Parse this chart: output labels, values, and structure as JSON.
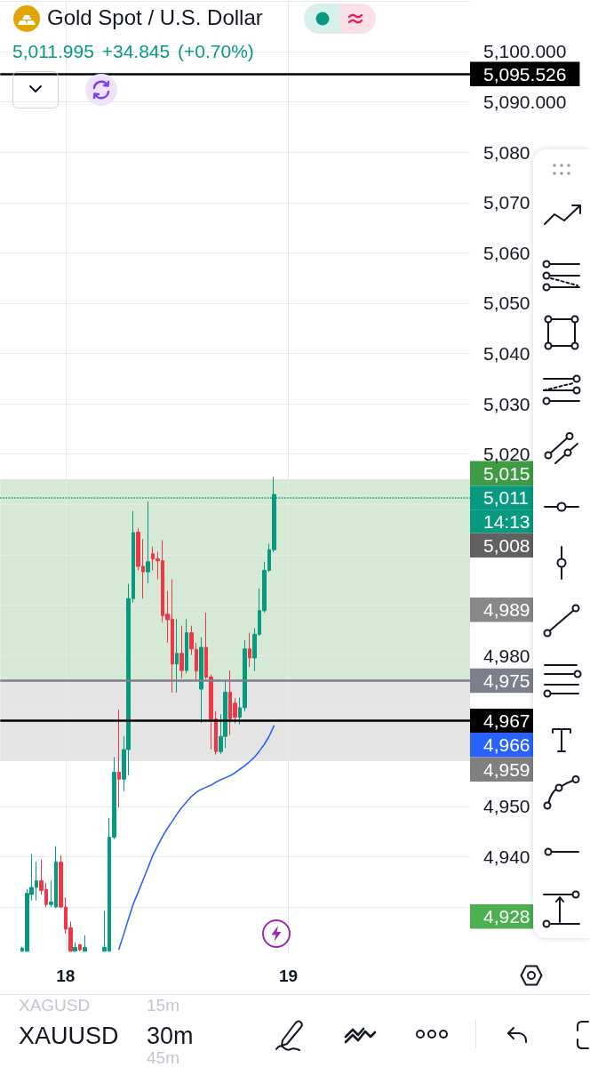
{
  "chart_data": {
    "type": "candlestick",
    "title": "Gold Spot / U.S. Dollar",
    "subtitle": "5,011.995 +34.845 (+0.70%)",
    "categories": [
      null,
      null,
      null,
      null,
      null,
      null,
      null,
      null,
      null,
      null,
      null,
      null,
      null,
      "18",
      null,
      null,
      null,
      null,
      null,
      null,
      null,
      null,
      null,
      null,
      null,
      null,
      null,
      null,
      null,
      null,
      null,
      null,
      null,
      null,
      null,
      null,
      null,
      null,
      null,
      null,
      null,
      null,
      null,
      null,
      null,
      null,
      null,
      null,
      null,
      null,
      null,
      null,
      null,
      null,
      null,
      null,
      null,
      null,
      null,
      "19",
      null,
      null,
      null,
      null,
      null,
      null,
      null,
      null,
      null,
      null,
      null,
      null,
      null,
      null,
      null,
      null,
      null,
      null,
      null,
      null,
      null,
      null,
      null,
      null,
      null,
      null,
      null,
      null,
      null,
      null,
      null,
      null,
      null,
      null,
      null,
      null,
      null
    ],
    "ohlc": [
      null,
      null,
      null,
      null,
      [
        4921.2,
        4922.1,
        4921.2,
        4921.8
      ],
      [
        4921.2,
        4933.6,
        4921.2,
        4932.7
      ],
      [
        4932.5,
        4940.5,
        4931.3,
        4933.9
      ],
      [
        4933.9,
        4939.0,
        4931.3,
        4935.2
      ],
      [
        4935.2,
        4939.4,
        4932.4,
        4933.3
      ],
      [
        4933.5,
        4934.8,
        4930.0,
        4930.5
      ],
      [
        4930.5,
        4935.3,
        4930.0,
        4931.0
      ],
      [
        4930.0,
        4942.1,
        4929.8,
        4939.0
      ],
      [
        4938.9,
        4940.3,
        4929.8,
        4930.0
      ],
      [
        4930.0,
        4931.9,
        4924.7,
        4925.6
      ],
      [
        4925.9,
        4927.1,
        4921.2,
        4921.2
      ],
      [
        4921.2,
        4923.0,
        4921.2,
        4922.0
      ],
      [
        4922.5,
        4922.7,
        4921.2,
        4921.5
      ],
      [
        4921.2,
        4924.4,
        4921.2,
        4922.0
      ],
      null,
      null,
      null,
      [
        4921.2,
        4929.2,
        4921.2,
        4922.0
      ],
      [
        4921.2,
        4947.7,
        4921.2,
        4943.9
      ],
      [
        4943.9,
        4959.8,
        4943.5,
        4956.8
      ],
      [
        4956.8,
        4969.2,
        4949.8,
        4955.4
      ],
      [
        4955.4,
        4963.9,
        4953.0,
        4961.3
      ],
      [
        4961.3,
        4994.2,
        4956.2,
        4991.3
      ],
      [
        4991.3,
        5008.7,
        4990.5,
        5004.4
      ],
      [
        5004.5,
        5005.3,
        4996.9,
        4997.7
      ],
      [
        4997.7,
        5003.1,
        4991.3,
        4996.6
      ],
      [
        4996.6,
        5010.6,
        4994.3,
        4998.6
      ],
      [
        5000.2,
        5001.6,
        4996.9,
        4999.2
      ],
      [
        4999.2,
        5000.6,
        4995.1,
        4998.8
      ],
      [
        4998.8,
        5002.9,
        4986.6,
        4987.9
      ],
      [
        4988.2,
        4992.8,
        4982.5,
        4987.1
      ],
      [
        4987.2,
        4995.1,
        4972.6,
        4978.3
      ],
      [
        4978.3,
        4987.2,
        4972.6,
        4980.4
      ],
      [
        4980.4,
        4985.9,
        4975.4,
        4977.0
      ],
      [
        4977.0,
        4987.2,
        4976.4,
        4984.5
      ],
      [
        4984.5,
        4985.9,
        4980.1,
        4981.3
      ],
      [
        4981.2,
        4982.5,
        4975.1,
        4976.9
      ],
      [
        4973.3,
        4983.6,
        4966.6,
        4981.6
      ],
      [
        4981.6,
        4988.5,
        4975.3,
        4975.7
      ],
      [
        4975.7,
        4976.2,
        4961.3,
        4967.4
      ],
      [
        4967.4,
        4968.9,
        4960.3,
        4960.9
      ],
      [
        4960.9,
        4968.3,
        4960.4,
        4963.9
      ],
      [
        4963.9,
        4975.1,
        4961.6,
        4972.7
      ],
      [
        4972.7,
        4977.0,
        4964.2,
        4967.4
      ],
      [
        4970.5,
        4971.5,
        4966.5,
        4967.7
      ],
      [
        4967.7,
        4971.6,
        4966.3,
        4969.6
      ],
      [
        4969.6,
        4983.0,
        4968.9,
        4981.3
      ],
      [
        4981.3,
        4984.5,
        4977.7,
        4979.5
      ],
      [
        4979.5,
        4985.4,
        4976.9,
        4984.2
      ],
      [
        4984.2,
        4993.3,
        4983.9,
        4988.9
      ],
      [
        4988.9,
        4998.6,
        4988.5,
        4996.9
      ],
      [
        4996.9,
        5002.2,
        4996.6,
        5001.0
      ],
      [
        5001.0,
        5015.5,
        5000.5,
        5011.995
      ],
      null,
      null,
      null,
      null,
      null,
      null,
      null,
      null,
      null,
      null,
      null,
      null,
      null,
      null,
      null,
      null,
      null,
      null,
      null,
      null,
      null,
      null,
      null,
      null,
      null,
      null,
      null,
      null,
      null,
      null,
      null,
      null,
      null,
      null,
      null,
      null,
      null,
      null,
      null,
      null
    ],
    "colors": [
      null,
      null,
      null,
      null,
      "#089981",
      "#089981",
      "#089981",
      "#089981",
      "#f23645",
      "#f23645",
      "#089981",
      "#089981",
      "#f23645",
      "#f23645",
      "#f23645",
      "#089981",
      "#f23645",
      "#089981",
      null,
      null,
      null,
      "#089981",
      "#089981",
      "#089981",
      "#f23645",
      "#089981",
      "#089981",
      "#089981",
      "#f23645",
      "#f23645",
      "#089981",
      "#f23645",
      "#f23645",
      "#f23645",
      "#f23645",
      "#f23645",
      "#089981",
      "#f23645",
      "#089981",
      "#f23645",
      "#f23645",
      "#089981",
      "#f23645",
      "#f23645",
      "#f23645",
      "#089981",
      "#089981",
      "#f23645",
      "#f23645",
      "#089981",
      "#089981",
      "#f23645",
      "#089981",
      "#089981",
      "#089981",
      "#089981",
      "#089981",
      null,
      null,
      null,
      null,
      null,
      null,
      null,
      null,
      null,
      null,
      null,
      null,
      null,
      null,
      null,
      null,
      null,
      null,
      null,
      null,
      null,
      null,
      null,
      null,
      null,
      null,
      null,
      null,
      null,
      null,
      null,
      null,
      null,
      null,
      null,
      null,
      null,
      null,
      null,
      null
    ],
    "series": [
      {
        "type": "line",
        "color": "#2962ff",
        "values": [
          null,
          null,
          null,
          null,
          null,
          null,
          null,
          null,
          null,
          null,
          null,
          null,
          null,
          null,
          null,
          null,
          null,
          null,
          null,
          null,
          null,
          null,
          null,
          null,
          4921.6,
          4924.6,
          4927.7,
          4930.7,
          4933.0,
          4935.4,
          4937.8,
          4940.3,
          4942.2,
          4944.0,
          4945.6,
          4947.0,
          4948.5,
          4949.8,
          4950.9,
          4952.0,
          4952.8,
          4953.4,
          4953.8,
          4954.2,
          4954.8,
          4955.3,
          4955.7,
          4956.1,
          4956.7,
          4957.4,
          4958.1,
          4958.9,
          4959.8,
          4961.0,
          4962.3,
          4963.9,
          4966.0,
          null,
          null,
          null,
          null,
          null,
          null,
          null,
          null,
          null,
          null,
          null,
          null,
          null,
          null,
          null,
          null,
          null,
          null,
          null,
          null,
          null,
          null,
          null,
          null,
          null,
          null,
          null,
          null,
          null,
          null,
          null,
          null,
          null,
          null,
          null,
          null,
          null,
          null,
          null,
          null
        ]
      }
    ],
    "ylim": [
      4921,
      5110
    ],
    "yticks": [
      {
        "value": 4930,
        "label": null
      },
      {
        "value": 4940,
        "label": "4,940"
      },
      {
        "value": 4950,
        "label": "4,950"
      },
      {
        "value": 4960,
        "label": null
      },
      {
        "value": 4970,
        "label": null
      },
      {
        "value": 4980,
        "label": "4,980"
      },
      {
        "value": 4990,
        "label": null
      },
      {
        "value": 5000,
        "label": null
      },
      {
        "value": 5010,
        "label": null
      },
      {
        "value": 5020,
        "label": "5,020"
      },
      {
        "value": 5030,
        "label": "5,030"
      },
      {
        "value": 5040,
        "label": "5,040"
      },
      {
        "value": 5050,
        "label": "5,050"
      },
      {
        "value": 5060,
        "label": "5,060"
      },
      {
        "value": 5070,
        "label": "5,070"
      },
      {
        "value": 5080,
        "label": "5,080"
      },
      {
        "value": 5090,
        "label": "5,090.000"
      },
      {
        "value": 5100,
        "label": "5,100.000"
      },
      {
        "value": 5110,
        "label": null
      }
    ],
    "grid": true,
    "bands": [
      {
        "axis": "y",
        "from": 4975,
        "to": 5015,
        "color": "#d5e9d5"
      },
      {
        "axis": "y",
        "from": 4959,
        "to": 4975,
        "color": "#e4e4e4"
      }
    ],
    "ref_lines": [
      {
        "axis": "y",
        "value": 5095.526,
        "label": "5,095.526",
        "color": "#000000",
        "line_style": "solid"
      },
      {
        "axis": "y",
        "value": 5011.3,
        "label": "5,011",
        "color": "#089981",
        "line_style": "dotted"
      },
      {
        "axis": "y",
        "value": 4975,
        "label": "4,975",
        "color": "#7d808a",
        "line_style": "solid"
      },
      {
        "axis": "y",
        "value": 4967,
        "label": "4,967",
        "color": "#000000",
        "line_style": "solid"
      }
    ],
    "annotations": [
      "XAGUSD",
      "15m",
      "XAUUSD",
      "30m",
      "45m",
      "14:13",
      "5,015",
      "5,008",
      "4,989",
      "4,966",
      "4,959",
      "4,928"
    ]
  }
}
